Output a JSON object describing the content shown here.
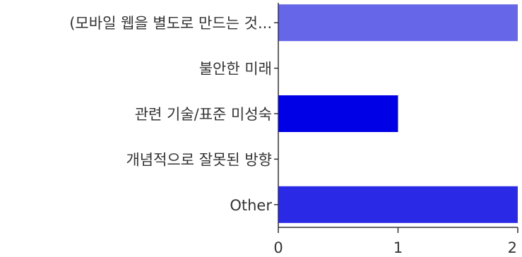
{
  "chart_data": {
    "type": "bar",
    "orientation": "horizontal",
    "title": "",
    "xlabel": "",
    "ylabel": "",
    "categories": [
      "(모바일 웹을 별도로 만드는 것...",
      "불안한 미래",
      "관련 기술/표준 미성숙",
      "개념적으로 잘못된 방향",
      "Other"
    ],
    "values": [
      2,
      0,
      1,
      0,
      2
    ],
    "bar_colors": [
      "#6666e8",
      "#3a3ae8",
      "#0000e6",
      "#2a2ae6",
      "#2a2ae6"
    ],
    "xlim": [
      0,
      2
    ],
    "xticks": [
      "0",
      "1",
      "2"
    ],
    "grid": false,
    "legend": "none"
  }
}
